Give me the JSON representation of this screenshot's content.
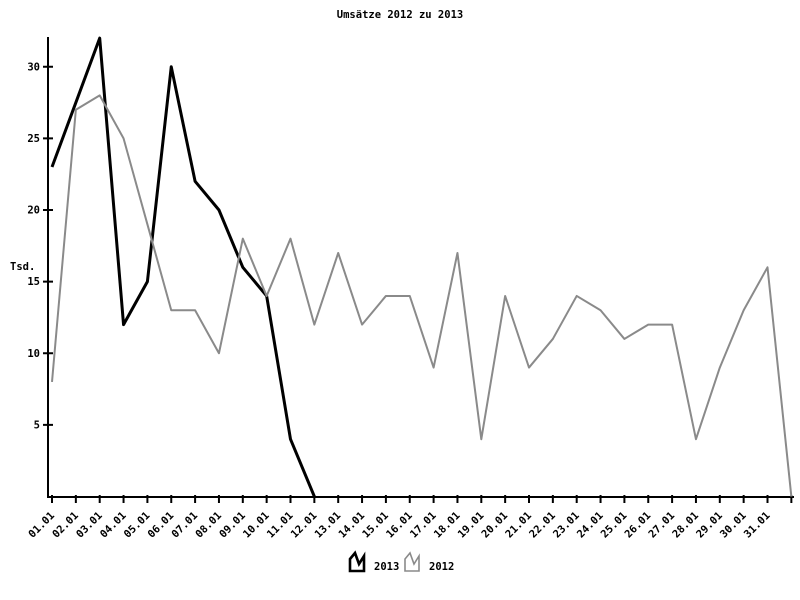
{
  "page": {
    "background_color": "#ffffff",
    "text_color": "#000000"
  },
  "chart_data": {
    "type": "line",
    "title": "Umsätze 2012 zu 2013",
    "ylabel": "Tsd.",
    "xlabel": "",
    "grid": false,
    "legend_position": "bottom-center",
    "ylim": [
      0,
      32
    ],
    "yticks": [
      5,
      10,
      15,
      20,
      25,
      30
    ],
    "x_labels": [
      "01.01",
      "02.01",
      "03.01",
      "04.01",
      "05.01",
      "06.01",
      "07.01",
      "08.01",
      "09.01",
      "10.01",
      "11.01",
      "12.01",
      "13.01",
      "14.01",
      "15.01",
      "16.01",
      "17.01",
      "18.01",
      "19.01",
      "20.01",
      "21.01",
      "22.01",
      "23.01",
      "24.01",
      "25.01",
      "26.01",
      "27.01",
      "28.01",
      "29.01",
      "30.01",
      "31.01"
    ],
    "note": "series values map to x_labels by index; values beyond the label list fall on the unlabeled end tick; 2013 line ends at zero on 12.01, 2012 line falls to zero after 31.01",
    "series": [
      {
        "name": "2013",
        "color": "#000000",
        "line_width": 3,
        "values": [
          23,
          27.5,
          32,
          12,
          15,
          30,
          22,
          20,
          16,
          14,
          4,
          0
        ]
      },
      {
        "name": "2012",
        "color": "#8a8a8a",
        "line_width": 2,
        "values": [
          8,
          27,
          28,
          25,
          19,
          13,
          13,
          10,
          18,
          14,
          18,
          12,
          17,
          12,
          14,
          14,
          9,
          17,
          4,
          14,
          9,
          11,
          14,
          13,
          11,
          12,
          12,
          4,
          9,
          13,
          16,
          0
        ]
      }
    ]
  }
}
